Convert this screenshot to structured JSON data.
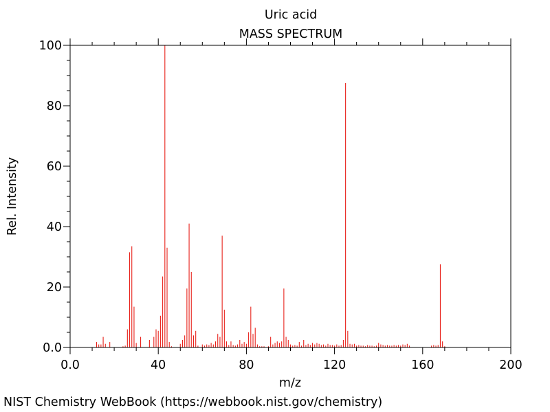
{
  "footer": {
    "credit": "NIST Chemistry WebBook (https://webbook.nist.gov/chemistry)"
  },
  "chart_data": {
    "type": "bar",
    "title": "Uric acid",
    "subtitle": "MASS SPECTRUM",
    "xlabel": "m/z",
    "ylabel": "Rel. Intensity",
    "xlim": [
      0,
      200
    ],
    "ylim": [
      0,
      100
    ],
    "x_ticks": [
      "0.0",
      "40",
      "80",
      "120",
      "160",
      "200"
    ],
    "y_ticks": [
      "0.0",
      "20",
      "40",
      "60",
      "80",
      "100"
    ],
    "grid": false,
    "bar_color": "#e8221b",
    "peaks": [
      [
        12,
        1.8
      ],
      [
        13,
        1.0
      ],
      [
        14,
        1.0
      ],
      [
        15,
        3.5
      ],
      [
        16,
        1.2
      ],
      [
        18,
        1.8
      ],
      [
        24,
        0.4
      ],
      [
        25,
        0.6
      ],
      [
        26,
        6.0
      ],
      [
        27,
        31.5
      ],
      [
        28,
        33.5
      ],
      [
        29,
        13.5
      ],
      [
        30,
        1.5
      ],
      [
        32,
        3.5
      ],
      [
        36,
        2.5
      ],
      [
        38,
        3.5
      ],
      [
        39,
        6.0
      ],
      [
        40,
        5.5
      ],
      [
        41,
        10.5
      ],
      [
        42,
        23.5
      ],
      [
        43,
        100
      ],
      [
        44,
        33.0
      ],
      [
        45,
        1.8
      ],
      [
        46,
        0.4
      ],
      [
        50,
        1.2
      ],
      [
        51,
        2.5
      ],
      [
        52,
        4.0
      ],
      [
        53,
        19.5
      ],
      [
        54,
        41.0
      ],
      [
        55,
        25.0
      ],
      [
        56,
        4.0
      ],
      [
        57,
        5.5
      ],
      [
        58,
        0.6
      ],
      [
        60,
        1.0
      ],
      [
        61,
        0.6
      ],
      [
        62,
        1.0
      ],
      [
        63,
        0.8
      ],
      [
        64,
        1.5
      ],
      [
        65,
        1.0
      ],
      [
        66,
        2.0
      ],
      [
        67,
        4.5
      ],
      [
        68,
        3.5
      ],
      [
        69,
        37.0
      ],
      [
        70,
        12.5
      ],
      [
        71,
        2.0
      ],
      [
        72,
        0.8
      ],
      [
        73,
        2.0
      ],
      [
        74,
        0.8
      ],
      [
        75,
        0.6
      ],
      [
        76,
        1.0
      ],
      [
        77,
        2.5
      ],
      [
        78,
        1.2
      ],
      [
        79,
        1.8
      ],
      [
        80,
        1.2
      ],
      [
        81,
        5.0
      ],
      [
        82,
        13.5
      ],
      [
        83,
        4.5
      ],
      [
        84,
        6.5
      ],
      [
        85,
        1.0
      ],
      [
        86,
        0.4
      ],
      [
        87,
        0.4
      ],
      [
        88,
        0.4
      ],
      [
        90,
        0.4
      ],
      [
        91,
        3.5
      ],
      [
        92,
        1.0
      ],
      [
        93,
        1.5
      ],
      [
        94,
        2.0
      ],
      [
        95,
        1.5
      ],
      [
        96,
        2.0
      ],
      [
        97,
        19.5
      ],
      [
        98,
        3.5
      ],
      [
        99,
        2.5
      ],
      [
        100,
        1.0
      ],
      [
        101,
        0.6
      ],
      [
        102,
        0.8
      ],
      [
        103,
        0.6
      ],
      [
        104,
        1.8
      ],
      [
        105,
        0.6
      ],
      [
        106,
        2.5
      ],
      [
        107,
        0.8
      ],
      [
        108,
        1.2
      ],
      [
        109,
        0.8
      ],
      [
        110,
        1.5
      ],
      [
        111,
        1.0
      ],
      [
        112,
        1.5
      ],
      [
        113,
        1.2
      ],
      [
        114,
        0.8
      ],
      [
        115,
        1.0
      ],
      [
        116,
        0.6
      ],
      [
        117,
        1.2
      ],
      [
        118,
        0.8
      ],
      [
        119,
        0.8
      ],
      [
        120,
        0.6
      ],
      [
        121,
        1.0
      ],
      [
        122,
        0.6
      ],
      [
        123,
        0.8
      ],
      [
        124,
        2.5
      ],
      [
        125,
        87.5
      ],
      [
        126,
        5.5
      ],
      [
        127,
        1.2
      ],
      [
        128,
        1.0
      ],
      [
        129,
        1.2
      ],
      [
        130,
        0.6
      ],
      [
        131,
        0.8
      ],
      [
        132,
        0.6
      ],
      [
        133,
        0.6
      ],
      [
        134,
        0.4
      ],
      [
        135,
        0.8
      ],
      [
        136,
        0.6
      ],
      [
        137,
        0.6
      ],
      [
        138,
        0.4
      ],
      [
        139,
        0.6
      ],
      [
        140,
        1.5
      ],
      [
        141,
        1.0
      ],
      [
        142,
        0.8
      ],
      [
        143,
        0.6
      ],
      [
        144,
        0.8
      ],
      [
        145,
        0.6
      ],
      [
        146,
        0.6
      ],
      [
        147,
        0.8
      ],
      [
        148,
        0.6
      ],
      [
        149,
        0.8
      ],
      [
        150,
        0.6
      ],
      [
        151,
        1.0
      ],
      [
        152,
        0.8
      ],
      [
        153,
        1.2
      ],
      [
        154,
        0.6
      ],
      [
        164,
        0.6
      ],
      [
        165,
        0.8
      ],
      [
        166,
        0.6
      ],
      [
        167,
        0.8
      ],
      [
        168,
        27.5
      ],
      [
        169,
        2.0
      ],
      [
        170,
        0.4
      ]
    ]
  }
}
